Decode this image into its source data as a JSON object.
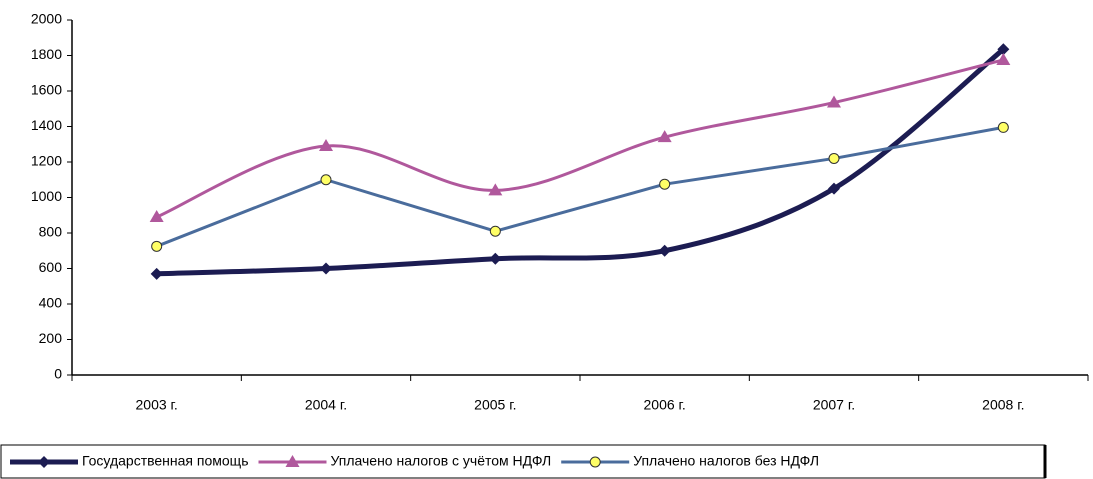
{
  "chart_data": {
    "type": "line",
    "categories": [
      "2003 г.",
      "2004 г.",
      "2005 г.",
      "2006 г.",
      "2007 г.",
      "2008 г."
    ],
    "series": [
      {
        "name": "Государственная помощь",
        "color": "#1c1c52",
        "marker": "diamond",
        "smooth": true,
        "width": 5,
        "values": [
          570,
          600,
          655,
          700,
          1050,
          1835
        ]
      },
      {
        "name": "Уплачено налогов с учётом НДФЛ",
        "color": "#b0589c",
        "marker": "triangle",
        "smooth": true,
        "width": 3,
        "values": [
          890,
          1290,
          1040,
          1340,
          1535,
          1775
        ]
      },
      {
        "name": "Уплачено налогов без НДФЛ",
        "color": "#4a6c9c",
        "marker": "circle",
        "smooth": false,
        "width": 3,
        "values": [
          725,
          1100,
          810,
          1075,
          1220,
          1395
        ]
      }
    ],
    "ylim": [
      0,
      2000
    ],
    "yticks": [
      0,
      200,
      400,
      600,
      800,
      1000,
      1200,
      1400,
      1600,
      1800,
      2000
    ],
    "grid": false,
    "legend": "bottom"
  }
}
